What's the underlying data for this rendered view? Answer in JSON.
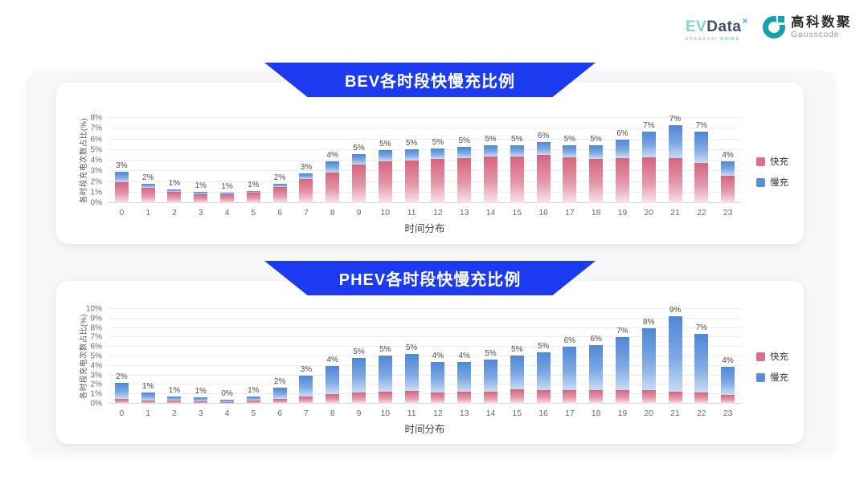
{
  "brand": {
    "evdata": {
      "ev": "EV",
      "data": "Data",
      "sup": "×",
      "tagline_left": "SHANGHAI",
      "tagline_right": "CHINA"
    },
    "gausscode": {
      "cn": "高科数聚",
      "en": "Gausscode"
    }
  },
  "colors": {
    "banner": "#1c3bf0",
    "fast": "#dd6e87",
    "slow": "#5b8ed9",
    "gausscode_teal": "#18a0b0"
  },
  "chart_data": [
    {
      "type": "bar",
      "stacked": true,
      "title": "BEV各时段快慢充比例",
      "xlabel": "时间分布",
      "ylabel": "各时段充电次数占比(%)",
      "ylim": [
        0,
        8
      ],
      "y_tick_suffix": "%",
      "grid": true,
      "legend_position": "right",
      "categories": [
        "0",
        "1",
        "2",
        "3",
        "4",
        "5",
        "6",
        "7",
        "8",
        "9",
        "10",
        "11",
        "12",
        "13",
        "14",
        "15",
        "16",
        "17",
        "18",
        "19",
        "20",
        "21",
        "22",
        "23"
      ],
      "bar_labels": [
        "3%",
        "2%",
        "1%",
        "1%",
        "1%",
        "1%",
        "2%",
        "3%",
        "4%",
        "5%",
        "5%",
        "5%",
        "5%",
        "5%",
        "5%",
        "5%",
        "6%",
        "5%",
        "5%",
        "6%",
        "7%",
        "7%",
        "7%",
        "4%"
      ],
      "series": [
        {
          "name": "快充",
          "color": "#dd6e87",
          "values": [
            2.0,
            1.4,
            1.05,
            0.85,
            0.8,
            0.95,
            1.5,
            2.25,
            2.9,
            3.6,
            3.9,
            4.0,
            4.15,
            4.25,
            4.4,
            4.35,
            4.5,
            4.3,
            4.15,
            4.2,
            4.3,
            4.2,
            3.8,
            2.6
          ]
        },
        {
          "name": "慢充",
          "color": "#5b8ed9",
          "values": [
            0.95,
            0.4,
            0.25,
            0.2,
            0.15,
            0.2,
            0.35,
            0.55,
            1.0,
            1.0,
            1.05,
            1.05,
            1.0,
            1.0,
            1.05,
            1.1,
            1.25,
            1.15,
            1.3,
            1.75,
            2.4,
            3.1,
            2.9,
            1.3
          ]
        }
      ]
    },
    {
      "type": "bar",
      "stacked": true,
      "title": "PHEV各时段快慢充比例",
      "xlabel": "时间分布",
      "ylabel": "各时段充电次数占比(%)",
      "ylim": [
        0,
        10
      ],
      "y_tick_suffix": "%",
      "grid": true,
      "legend_position": "right",
      "categories": [
        "0",
        "1",
        "2",
        "3",
        "4",
        "5",
        "6",
        "7",
        "8",
        "9",
        "10",
        "11",
        "12",
        "13",
        "14",
        "15",
        "16",
        "17",
        "18",
        "19",
        "20",
        "21",
        "22",
        "23"
      ],
      "bar_labels": [
        "2%",
        "1%",
        "1%",
        "1%",
        "0%",
        "1%",
        "2%",
        "3%",
        "4%",
        "5%",
        "5%",
        "5%",
        "4%",
        "4%",
        "5%",
        "5%",
        "5%",
        "6%",
        "6%",
        "7%",
        "8%",
        "9%",
        "7%",
        "4%"
      ],
      "series": [
        {
          "name": "快充",
          "color": "#dd6e87",
          "values": [
            0.5,
            0.35,
            0.3,
            0.25,
            0.2,
            0.3,
            0.5,
            0.75,
            1.0,
            1.2,
            1.3,
            1.35,
            1.2,
            1.25,
            1.3,
            1.5,
            1.4,
            1.4,
            1.45,
            1.4,
            1.45,
            1.3,
            1.2,
            0.9
          ]
        },
        {
          "name": "慢充",
          "color": "#5b8ed9",
          "values": [
            1.7,
            0.85,
            0.45,
            0.4,
            0.25,
            0.5,
            1.2,
            2.2,
            3.0,
            3.6,
            3.8,
            3.9,
            3.25,
            3.2,
            3.4,
            3.6,
            4.0,
            4.6,
            4.75,
            5.6,
            6.55,
            7.9,
            6.2,
            3.0
          ]
        }
      ]
    }
  ]
}
